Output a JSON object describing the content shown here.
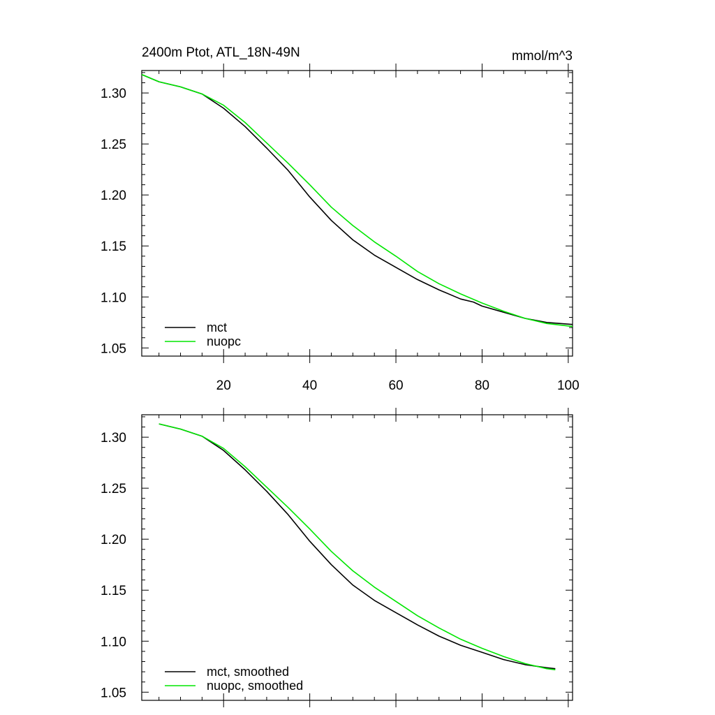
{
  "page": {
    "title_left": "2400m Ptot, ATL_18N-49N",
    "title_right": "mmol/m^3"
  },
  "colors": {
    "mct": "#000000",
    "nuopc": "#00e600",
    "axis": "#000000"
  },
  "chart_data": [
    {
      "type": "line",
      "title": "2400m Ptot, ATL_18N-49N",
      "units": "mmol/m^3",
      "xlim": [
        1,
        101
      ],
      "ylim": [
        1.042,
        1.322
      ],
      "x_ticks": [
        20,
        40,
        60,
        80,
        100
      ],
      "x_tick_labels": [
        "20",
        "40",
        "60",
        "80",
        "100"
      ],
      "y_ticks": [
        1.05,
        1.1,
        1.15,
        1.2,
        1.25,
        1.3
      ],
      "y_tick_labels": [
        "1.05",
        "1.10",
        "1.15",
        "1.20",
        "1.25",
        "1.30"
      ],
      "legend": "bottom-left",
      "series": [
        {
          "name": "mct",
          "color": "#000000",
          "x": [
            1,
            5,
            10,
            15,
            20,
            25,
            30,
            35,
            40,
            45,
            50,
            55,
            60,
            65,
            70,
            75,
            78,
            80,
            85,
            90,
            95,
            101
          ],
          "y": [
            1.318,
            1.311,
            1.306,
            1.299,
            1.285,
            1.267,
            1.246,
            1.224,
            1.198,
            1.175,
            1.156,
            1.141,
            1.129,
            1.117,
            1.107,
            1.098,
            1.095,
            1.091,
            1.085,
            1.079,
            1.075,
            1.073
          ]
        },
        {
          "name": "nuopc",
          "color": "#00e600",
          "x": [
            1,
            5,
            10,
            15,
            20,
            25,
            30,
            35,
            40,
            45,
            50,
            55,
            60,
            65,
            70,
            75,
            80,
            85,
            90,
            95,
            101
          ],
          "y": [
            1.318,
            1.311,
            1.306,
            1.299,
            1.288,
            1.271,
            1.251,
            1.231,
            1.21,
            1.188,
            1.17,
            1.154,
            1.14,
            1.125,
            1.113,
            1.103,
            1.094,
            1.086,
            1.079,
            1.074,
            1.071
          ]
        }
      ]
    },
    {
      "type": "line",
      "title": "",
      "xlim": [
        1,
        101
      ],
      "ylim": [
        1.042,
        1.322
      ],
      "x_ticks": [
        20,
        40,
        60,
        80,
        100
      ],
      "x_tick_labels": [],
      "y_ticks": [
        1.05,
        1.1,
        1.15,
        1.2,
        1.25,
        1.3
      ],
      "y_tick_labels": [
        "1.05",
        "1.10",
        "1.15",
        "1.20",
        "1.25",
        "1.30"
      ],
      "legend": "bottom-left",
      "series": [
        {
          "name": "mct, smoothed",
          "color": "#000000",
          "x": [
            5,
            10,
            15,
            20,
            25,
            30,
            35,
            40,
            45,
            50,
            55,
            60,
            65,
            70,
            75,
            80,
            85,
            90,
            95,
            97
          ],
          "y": [
            1.313,
            1.308,
            1.301,
            1.287,
            1.268,
            1.247,
            1.224,
            1.198,
            1.175,
            1.155,
            1.14,
            1.128,
            1.116,
            1.105,
            1.096,
            1.089,
            1.082,
            1.077,
            1.074,
            1.073
          ]
        },
        {
          "name": "nuopc, smoothed",
          "color": "#00e600",
          "x": [
            5,
            10,
            15,
            20,
            25,
            30,
            35,
            40,
            45,
            50,
            55,
            60,
            65,
            70,
            75,
            80,
            85,
            90,
            95,
            97
          ],
          "y": [
            1.313,
            1.308,
            1.301,
            1.289,
            1.271,
            1.251,
            1.231,
            1.21,
            1.188,
            1.169,
            1.153,
            1.139,
            1.125,
            1.113,
            1.102,
            1.093,
            1.085,
            1.078,
            1.073,
            1.072
          ]
        }
      ]
    }
  ]
}
